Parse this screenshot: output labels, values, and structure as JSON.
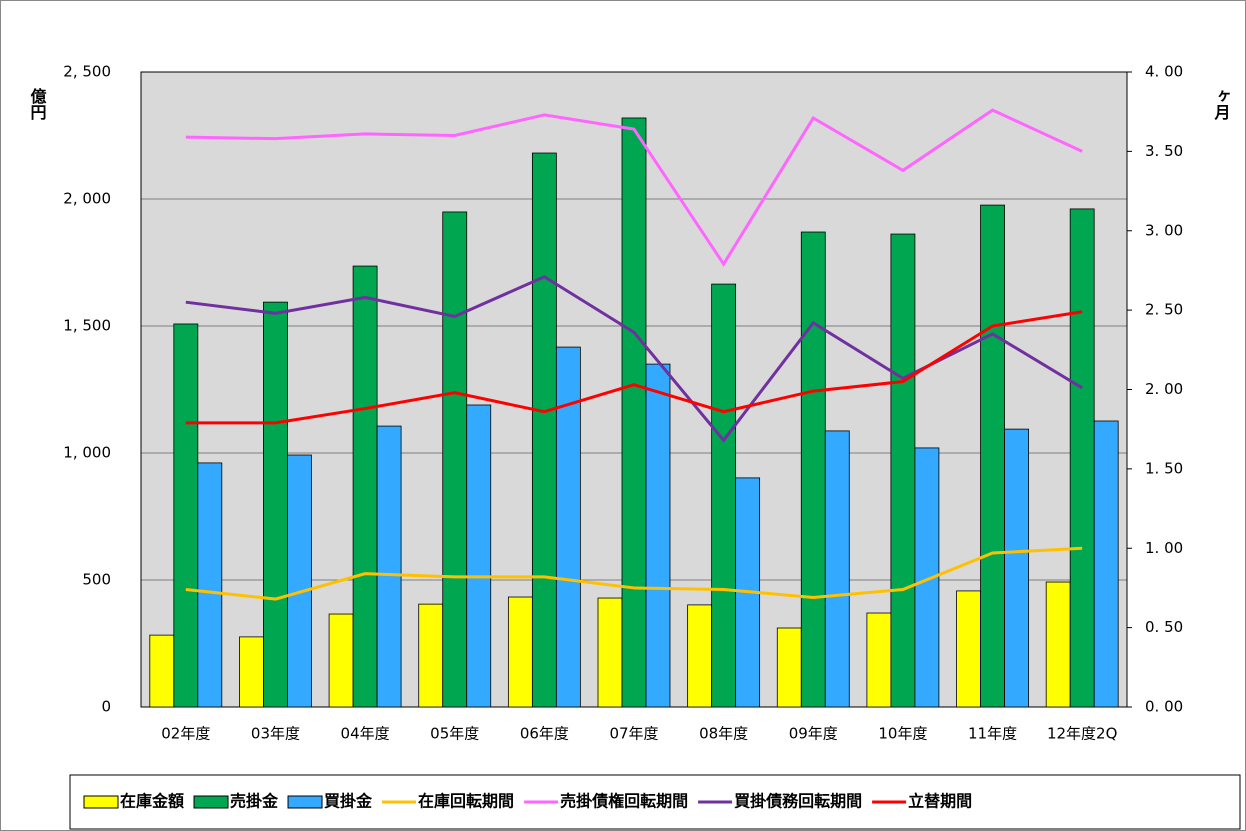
{
  "chart_data": {
    "type": "bar-line",
    "y_unit": "億円",
    "y2_unit": "ヶ月",
    "categories": [
      "02年度",
      "03年度",
      "04年度",
      "05年度",
      "06年度",
      "07年度",
      "08年度",
      "09年度",
      "10年度",
      "11年度",
      "12年度2Q"
    ],
    "series": [
      {
        "name": "在庫金額",
        "kind": "bar",
        "color": "#ffff00",
        "values": [
          283,
          276,
          366,
          405,
          433,
          429,
          402,
          311,
          370,
          457,
          492
        ]
      },
      {
        "name": "売掛金",
        "kind": "bar",
        "color": "#00a650",
        "values": [
          1508,
          1594,
          1736,
          1949,
          2181,
          2319,
          1665,
          1870,
          1862,
          1976,
          1961
        ]
      },
      {
        "name": "買掛金",
        "kind": "bar",
        "color": "#33aaff",
        "values": [
          961,
          992,
          1106,
          1189,
          1417,
          1350,
          902,
          1087,
          1020,
          1094,
          1126
        ]
      },
      {
        "name": "在庫回転期間",
        "kind": "line",
        "axis": "y2",
        "color": "#ffc000",
        "values": [
          0.74,
          0.68,
          0.84,
          0.82,
          0.82,
          0.75,
          0.74,
          0.69,
          0.74,
          0.97,
          1.0
        ]
      },
      {
        "name": "売掛債権回転期間",
        "kind": "line",
        "axis": "y2",
        "color": "#ff66ff",
        "values": [
          3.59,
          3.58,
          3.61,
          3.6,
          3.73,
          3.64,
          2.79,
          3.71,
          3.38,
          3.76,
          3.5
        ]
      },
      {
        "name": "買掛債務回転期間",
        "kind": "line",
        "axis": "y2",
        "color": "#7030a0",
        "values": [
          2.55,
          2.48,
          2.58,
          2.46,
          2.71,
          2.36,
          1.68,
          2.42,
          2.07,
          2.35,
          2.01
        ]
      },
      {
        "name": "立替期間",
        "kind": "line",
        "axis": "y2",
        "color": "#ff0000",
        "values": [
          1.79,
          1.79,
          1.88,
          1.98,
          1.86,
          2.03,
          1.86,
          1.99,
          2.05,
          2.4,
          2.49
        ]
      }
    ],
    "ylim": [
      0,
      2500
    ],
    "yticks": [
      0,
      500,
      {
        "value": 1000,
        "label": "1, 000"
      },
      {
        "value": 1500,
        "label": "1, 500"
      },
      {
        "value": 2000,
        "label": "2, 000"
      },
      {
        "value": 2500,
        "label": "2, 500"
      }
    ],
    "y2lim": [
      0,
      4
    ],
    "y2ticks": [
      {
        "value": 0,
        "label": "0. 00"
      },
      {
        "value": 0.5,
        "label": "0. 50"
      },
      {
        "value": 1,
        "label": "1. 00"
      },
      {
        "value": 1.5,
        "label": "1. 50"
      },
      {
        "value": 2,
        "label": "2. 00"
      },
      {
        "value": 2.5,
        "label": "2. 50"
      },
      {
        "value": 3,
        "label": "3. 00"
      },
      {
        "value": 3.5,
        "label": "3. 50"
      },
      {
        "value": 4,
        "label": "4. 00"
      }
    ],
    "grid": true,
    "legend": "bottom",
    "plot_background": "#d9d9d9"
  }
}
